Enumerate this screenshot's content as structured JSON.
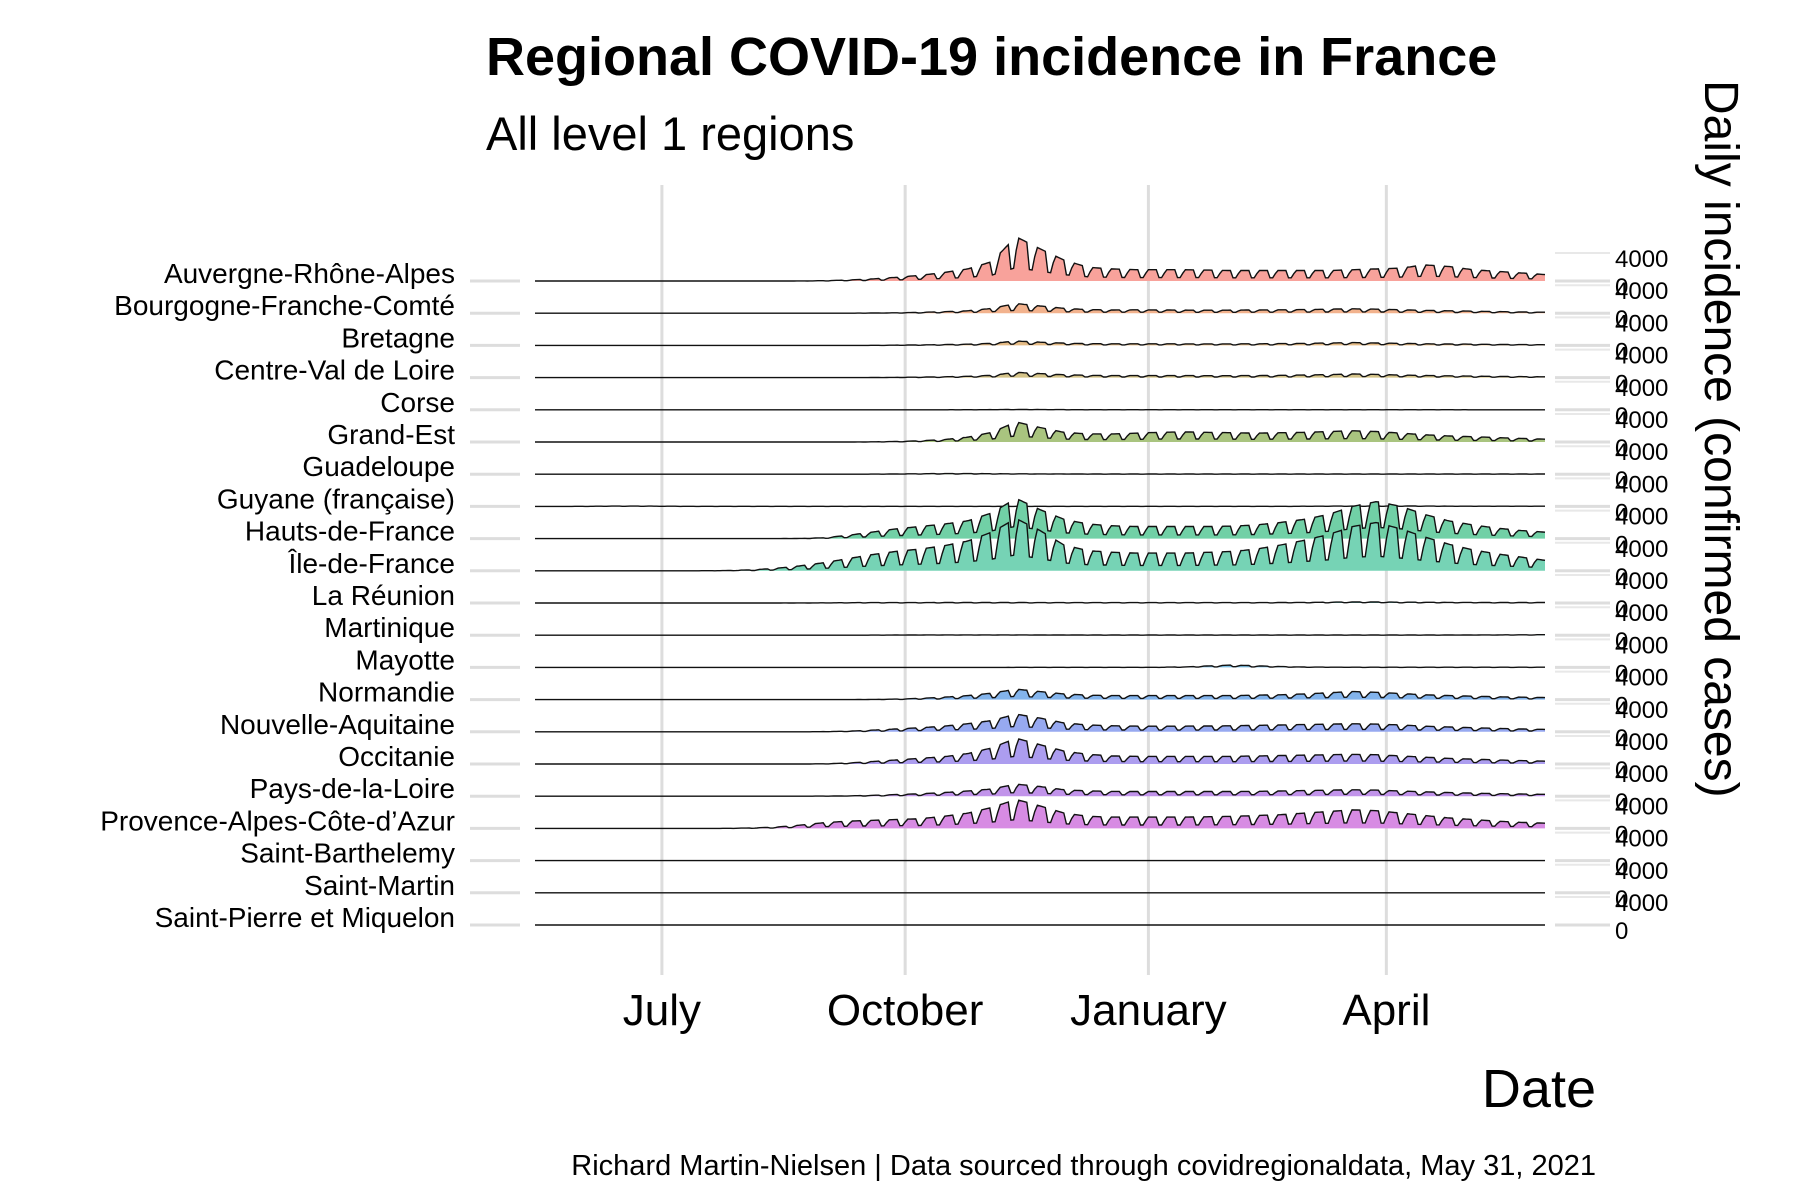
{
  "chart_data": {
    "type": "area",
    "title": "Regional COVID-19 incidence in France",
    "subtitle": "All level 1 regions",
    "xlabel": "Date",
    "ylabel": "Daily incidence (confirmed cases)",
    "caption": "Richard Martin-Nielsen | Data sourced through covidregionaldata, May 31, 2021",
    "x_range": [
      "2020-05-14",
      "2021-05-31"
    ],
    "x_ticks": [
      {
        "date": "2020-07-01",
        "label": "July"
      },
      {
        "date": "2020-10-01",
        "label": "October"
      },
      {
        "date": "2021-01-01",
        "label": "January"
      },
      {
        "date": "2021-04-01",
        "label": "April"
      }
    ],
    "y_ticks": [
      "0",
      "4000"
    ],
    "grid": true,
    "legend": "none",
    "series": [
      {
        "name": "Auvergne-Rhône-Alpes",
        "color": "#f8a29b",
        "values": [
          0,
          0,
          0,
          0,
          0,
          0,
          0,
          0,
          0,
          0,
          0,
          10,
          40,
          120,
          250,
          450,
          700,
          1050,
          1500,
          2400,
          5500,
          4000,
          2600,
          1700,
          1500,
          1400,
          1400,
          1400,
          1350,
          1300,
          1300,
          1300,
          1300,
          1300,
          1400,
          1500,
          1600,
          2000,
          1800,
          1400,
          1200,
          1000,
          800
        ]
      },
      {
        "name": "Bourgogne-Franche-Comté",
        "color": "#f2b28d",
        "values": [
          0,
          0,
          0,
          0,
          0,
          0,
          0,
          0,
          0,
          0,
          0,
          0,
          0,
          0,
          20,
          50,
          100,
          180,
          300,
          600,
          1200,
          900,
          600,
          450,
          400,
          420,
          400,
          380,
          370,
          380,
          400,
          420,
          450,
          500,
          550,
          500,
          420,
          350,
          300,
          250,
          200,
          150,
          120
        ]
      },
      {
        "name": "Bretagne",
        "color": "#e5bb85",
        "values": [
          0,
          0,
          0,
          0,
          0,
          0,
          0,
          0,
          0,
          0,
          0,
          0,
          0,
          0,
          10,
          30,
          60,
          100,
          150,
          250,
          550,
          400,
          280,
          220,
          200,
          200,
          200,
          190,
          190,
          190,
          200,
          220,
          250,
          300,
          350,
          300,
          250,
          200,
          170,
          150,
          120,
          100,
          80
        ]
      },
      {
        "name": "Centre-Val de Loire",
        "color": "#d5c489",
        "values": [
          0,
          0,
          0,
          0,
          0,
          0,
          0,
          0,
          0,
          0,
          0,
          0,
          0,
          0,
          10,
          30,
          60,
          100,
          160,
          280,
          650,
          500,
          350,
          280,
          250,
          250,
          250,
          250,
          240,
          240,
          250,
          280,
          320,
          380,
          450,
          400,
          320,
          260,
          220,
          180,
          150,
          120,
          100
        ]
      },
      {
        "name": "Corse",
        "color": "#c0c98c",
        "values": [
          0,
          0,
          0,
          0,
          0,
          0,
          0,
          0,
          0,
          0,
          0,
          0,
          0,
          0,
          0,
          0,
          0,
          5,
          10,
          20,
          40,
          30,
          20,
          15,
          15,
          15,
          15,
          15,
          15,
          15,
          15,
          15,
          15,
          15,
          15,
          15,
          10,
          10,
          10,
          5,
          5,
          5,
          5
        ]
      },
      {
        "name": "Grand-Est",
        "color": "#a9c47f",
        "values": [
          0,
          0,
          0,
          0,
          0,
          0,
          0,
          0,
          0,
          0,
          0,
          0,
          0,
          0,
          20,
          60,
          150,
          300,
          600,
          1200,
          2500,
          1800,
          1200,
          1000,
          1000,
          1100,
          1200,
          1250,
          1200,
          1150,
          1100,
          1150,
          1200,
          1300,
          1400,
          1300,
          1100,
          900,
          750,
          650,
          550,
          450,
          350
        ]
      },
      {
        "name": "Guadeloupe",
        "color": "#94cc8a",
        "values": [
          0,
          0,
          0,
          0,
          0,
          0,
          0,
          0,
          0,
          0,
          0,
          0,
          0,
          0,
          10,
          30,
          60,
          80,
          80,
          60,
          50,
          40,
          30,
          20,
          20,
          20,
          20,
          20,
          20,
          20,
          20,
          20,
          20,
          20,
          20,
          20,
          20,
          20,
          20,
          20,
          20,
          20,
          20
        ]
      },
      {
        "name": "Guyane (française)",
        "color": "#7fcf96",
        "values": [
          0,
          0,
          10,
          30,
          40,
          30,
          20,
          10,
          10,
          10,
          10,
          10,
          10,
          10,
          10,
          10,
          10,
          10,
          10,
          10,
          10,
          10,
          10,
          10,
          10,
          10,
          10,
          10,
          10,
          10,
          10,
          10,
          20,
          30,
          40,
          50,
          50,
          40,
          30,
          30,
          30,
          30,
          30
        ]
      },
      {
        "name": "Hauts-de-France",
        "color": "#71d0a6",
        "values": [
          0,
          0,
          0,
          0,
          0,
          0,
          0,
          0,
          0,
          0,
          0,
          20,
          100,
          400,
          800,
          1200,
          1500,
          1800,
          2200,
          3200,
          5000,
          3600,
          2400,
          1800,
          1600,
          1500,
          1500,
          1500,
          1500,
          1550,
          1700,
          2000,
          2400,
          3000,
          4000,
          4600,
          4000,
          3000,
          2200,
          1700,
          1300,
          1000,
          800
        ]
      },
      {
        "name": "Île-de-France",
        "color": "#76d3b5",
        "values": [
          0,
          0,
          0,
          0,
          0,
          0,
          0,
          10,
          30,
          120,
          300,
          600,
          1000,
          1500,
          2000,
          2400,
          2700,
          3100,
          3700,
          4800,
          6500,
          5000,
          3200,
          2500,
          2300,
          2200,
          2200,
          2200,
          2300,
          2400,
          2700,
          3200,
          3800,
          4500,
          5500,
          6000,
          5200,
          4200,
          3300,
          2600,
          2100,
          1700,
          1300
        ]
      },
      {
        "name": "La Réunion",
        "color": "#72cfc6",
        "values": [
          0,
          0,
          0,
          0,
          0,
          0,
          0,
          0,
          0,
          0,
          5,
          10,
          20,
          40,
          50,
          50,
          50,
          60,
          60,
          60,
          60,
          50,
          50,
          50,
          50,
          50,
          50,
          50,
          50,
          50,
          50,
          60,
          80,
          100,
          120,
          120,
          100,
          90,
          80,
          70,
          60,
          60,
          60
        ]
      },
      {
        "name": "Martinique",
        "color": "#74c8d8",
        "values": [
          0,
          0,
          0,
          0,
          0,
          0,
          0,
          0,
          0,
          0,
          0,
          0,
          0,
          0,
          10,
          20,
          30,
          40,
          40,
          40,
          40,
          30,
          30,
          20,
          20,
          20,
          20,
          20,
          20,
          20,
          20,
          20,
          20,
          20,
          20,
          20,
          20,
          20,
          20,
          30,
          40,
          50,
          60
        ]
      },
      {
        "name": "Mayotte",
        "color": "#7cbfe2",
        "values": [
          0,
          0,
          0,
          0,
          0,
          0,
          0,
          0,
          0,
          0,
          0,
          0,
          0,
          0,
          0,
          0,
          0,
          0,
          0,
          0,
          10,
          10,
          10,
          10,
          10,
          10,
          20,
          60,
          180,
          300,
          200,
          100,
          50,
          30,
          20,
          20,
          20,
          20,
          20,
          20,
          20,
          20,
          20
        ]
      },
      {
        "name": "Normandie",
        "color": "#83b4ec",
        "values": [
          0,
          0,
          0,
          0,
          0,
          0,
          0,
          0,
          0,
          0,
          0,
          0,
          0,
          0,
          20,
          60,
          150,
          300,
          500,
          800,
          1300,
          1000,
          700,
          550,
          500,
          500,
          500,
          500,
          500,
          500,
          550,
          600,
          700,
          850,
          1000,
          900,
          750,
          600,
          500,
          420,
          350,
          300,
          250
        ]
      },
      {
        "name": "Nouvelle-Aquitaine",
        "color": "#97a9f0",
        "values": [
          0,
          0,
          0,
          0,
          0,
          0,
          0,
          0,
          0,
          0,
          0,
          0,
          20,
          80,
          200,
          350,
          500,
          700,
          1000,
          1400,
          2200,
          1700,
          1100,
          850,
          750,
          700,
          700,
          700,
          720,
          750,
          800,
          850,
          900,
          950,
          1000,
          950,
          850,
          700,
          600,
          500,
          420,
          350,
          300
        ]
      },
      {
        "name": "Occitanie",
        "color": "#ac9def",
        "values": [
          0,
          0,
          0,
          0,
          0,
          0,
          0,
          0,
          0,
          0,
          0,
          0,
          30,
          120,
          300,
          500,
          700,
          900,
          1300,
          2000,
          3200,
          2400,
          1600,
          1200,
          1000,
          950,
          950,
          950,
          950,
          950,
          1000,
          1050,
          1100,
          1150,
          1200,
          1150,
          1000,
          850,
          700,
          600,
          500,
          420,
          350
        ]
      },
      {
        "name": "Pays-de-la-Loire",
        "color": "#c193ea",
        "values": [
          0,
          0,
          0,
          0,
          0,
          0,
          0,
          0,
          0,
          0,
          0,
          0,
          10,
          40,
          100,
          200,
          300,
          450,
          650,
          900,
          1500,
          1200,
          800,
          650,
          600,
          580,
          580,
          580,
          580,
          590,
          600,
          650,
          700,
          750,
          800,
          750,
          650,
          550,
          450,
          380,
          320,
          270,
          230
        ]
      },
      {
        "name": "Provence-Alpes-Côte-d’Azur",
        "color": "#d78be3",
        "values": [
          0,
          0,
          0,
          0,
          0,
          0,
          0,
          0,
          10,
          50,
          150,
          400,
          700,
          900,
          1000,
          1100,
          1200,
          1500,
          1900,
          2600,
          3600,
          2800,
          1900,
          1500,
          1400,
          1400,
          1400,
          1400,
          1450,
          1500,
          1600,
          1700,
          1900,
          2100,
          2300,
          2200,
          1900,
          1600,
          1300,
          1100,
          900,
          750,
          650
        ]
      },
      {
        "name": "Saint-Barthelemy",
        "color": "#eb88d6",
        "values": [
          0,
          0,
          0,
          0,
          0,
          0,
          0,
          0,
          0,
          0,
          0,
          0,
          0,
          0,
          0,
          0,
          0,
          0,
          0,
          0,
          0,
          0,
          0,
          0,
          0,
          0,
          0,
          0,
          0,
          0,
          0,
          0,
          0,
          0,
          0,
          0,
          0,
          0,
          0,
          0,
          0,
          0,
          0
        ]
      },
      {
        "name": "Saint-Martin",
        "color": "#f48fc4",
        "values": [
          0,
          0,
          0,
          0,
          0,
          0,
          0,
          0,
          0,
          0,
          0,
          0,
          0,
          0,
          0,
          0,
          0,
          0,
          0,
          0,
          0,
          0,
          0,
          0,
          0,
          0,
          0,
          0,
          0,
          0,
          0,
          0,
          0,
          0,
          0,
          0,
          0,
          0,
          0,
          0,
          0,
          0,
          0
        ]
      },
      {
        "name": "Saint-Pierre et Miquelon",
        "color": "#f898b0",
        "values": [
          0,
          0,
          0,
          0,
          0,
          0,
          0,
          0,
          0,
          0,
          0,
          0,
          0,
          0,
          0,
          0,
          0,
          0,
          0,
          0,
          0,
          0,
          0,
          0,
          0,
          0,
          0,
          0,
          0,
          0,
          0,
          0,
          0,
          0,
          0,
          0,
          0,
          0,
          0,
          0,
          0,
          0,
          0
        ]
      }
    ]
  }
}
